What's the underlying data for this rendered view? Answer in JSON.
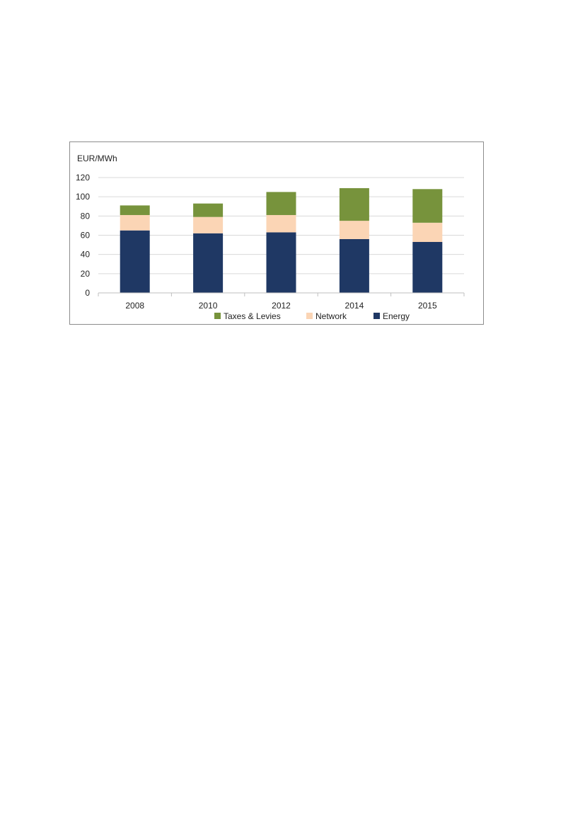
{
  "chart_data": {
    "type": "bar",
    "stacked": true,
    "title": "",
    "xlabel": "",
    "ylabel": "EUR/MWh",
    "ylim": [
      0,
      120
    ],
    "yticks": [
      0,
      20,
      40,
      60,
      80,
      100,
      120
    ],
    "grid": true,
    "legend_position": "bottom",
    "categories": [
      "2008",
      "2010",
      "2012",
      "2014",
      "2015"
    ],
    "series": [
      {
        "name": "Energy",
        "color": "#1f3864",
        "values": [
          65,
          62,
          63,
          56,
          53
        ]
      },
      {
        "name": "Network",
        "color": "#fbd5b5",
        "values": [
          16,
          17,
          18,
          19,
          20
        ]
      },
      {
        "name": "Taxes & Levies",
        "color": "#77933c",
        "values": [
          10,
          14,
          24,
          34,
          35
        ]
      }
    ],
    "legend_order": [
      "Taxes & Levies",
      "Network",
      "Energy"
    ]
  }
}
